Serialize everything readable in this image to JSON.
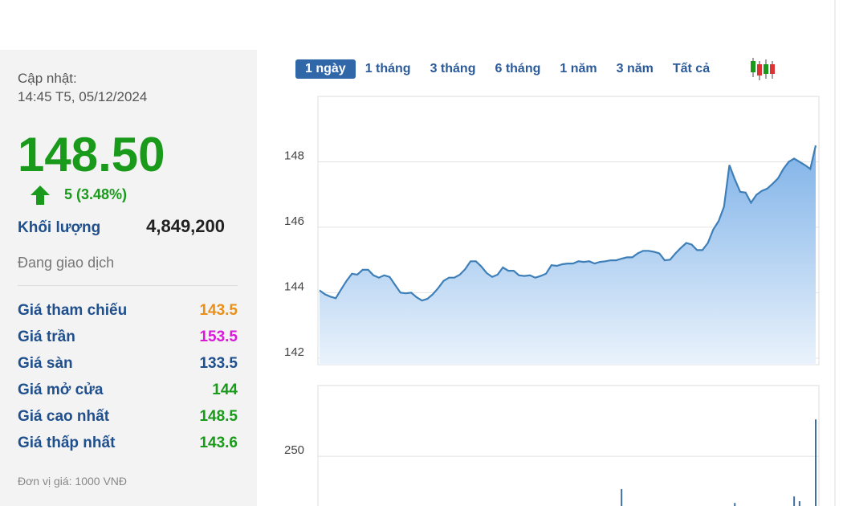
{
  "panel": {
    "updated_label": "Cập nhật:",
    "updated_time": "14:45 T5, 05/12/2024",
    "price": "148.50",
    "change": "5 (3.48%)",
    "volume_label": "Khối lượng",
    "volume": "4,849,200",
    "status": "Đang giao dịch",
    "rows": [
      [
        "Giá tham chiếu",
        "143.5"
      ],
      [
        "Giá trần",
        "153.5"
      ],
      [
        "Giá sàn",
        "133.5"
      ],
      [
        "Giá mở cửa",
        "144"
      ],
      [
        "Giá cao nhất",
        "148.5"
      ],
      [
        "Giá thấp nhất",
        "143.6"
      ]
    ],
    "row_colors": [
      "#e8901a",
      "#d81bd8",
      "#1f4f8c",
      "#1a9a1a",
      "#1a9a1a",
      "#1a9a1a"
    ],
    "unit_note": "Đơn vị giá: 1000 VNĐ"
  },
  "tabs": [
    "1 ngày",
    "1 tháng",
    "3 tháng",
    "6 tháng",
    "1 năm",
    "3 năm",
    "Tất cả"
  ],
  "chart_data": [
    {
      "type": "area",
      "color": "#3f7fb8",
      "ylim": [
        141.8,
        150
      ],
      "yticks": [
        142,
        144,
        146,
        148
      ],
      "grid": true,
      "values": [
        144.07,
        143.95,
        143.88,
        143.83,
        144.1,
        144.36,
        144.58,
        144.55,
        144.7,
        144.7,
        144.53,
        144.46,
        144.53,
        144.48,
        144.24,
        144,
        143.98,
        144,
        143.86,
        143.76,
        143.81,
        143.95,
        144.14,
        144.36,
        144.46,
        144.46,
        144.55,
        144.72,
        144.96,
        144.96,
        144.8,
        144.6,
        144.48,
        144.55,
        144.77,
        144.67,
        144.67,
        144.53,
        144.51,
        144.53,
        144.46,
        144.51,
        144.58,
        144.84,
        144.82,
        144.87,
        144.89,
        144.89,
        144.96,
        144.94,
        144.96,
        144.89,
        144.94,
        144.96,
        144.99,
        144.99,
        145.04,
        145.08,
        145.08,
        145.2,
        145.28,
        145.28,
        145.25,
        145.2,
        144.99,
        145.01,
        145.2,
        145.37,
        145.52,
        145.47,
        145.3,
        145.3,
        145.52,
        145.93,
        146.19,
        146.63,
        147.9,
        147.47,
        147.08,
        147.06,
        146.75,
        146.99,
        147.11,
        147.18,
        147.33,
        147.49,
        147.78,
        148,
        148.1,
        148,
        147.9,
        147.78,
        148.5
      ]
    },
    {
      "type": "bar",
      "color": "#3f6f9f",
      "ylim": [
        0,
        490
      ],
      "yticks": [
        250
      ],
      "grid": true,
      "xlim": [
        0,
        92
      ],
      "x": [
        56,
        77,
        88,
        89,
        92
      ],
      "values": [
        139,
        92,
        114,
        98,
        375
      ]
    }
  ]
}
